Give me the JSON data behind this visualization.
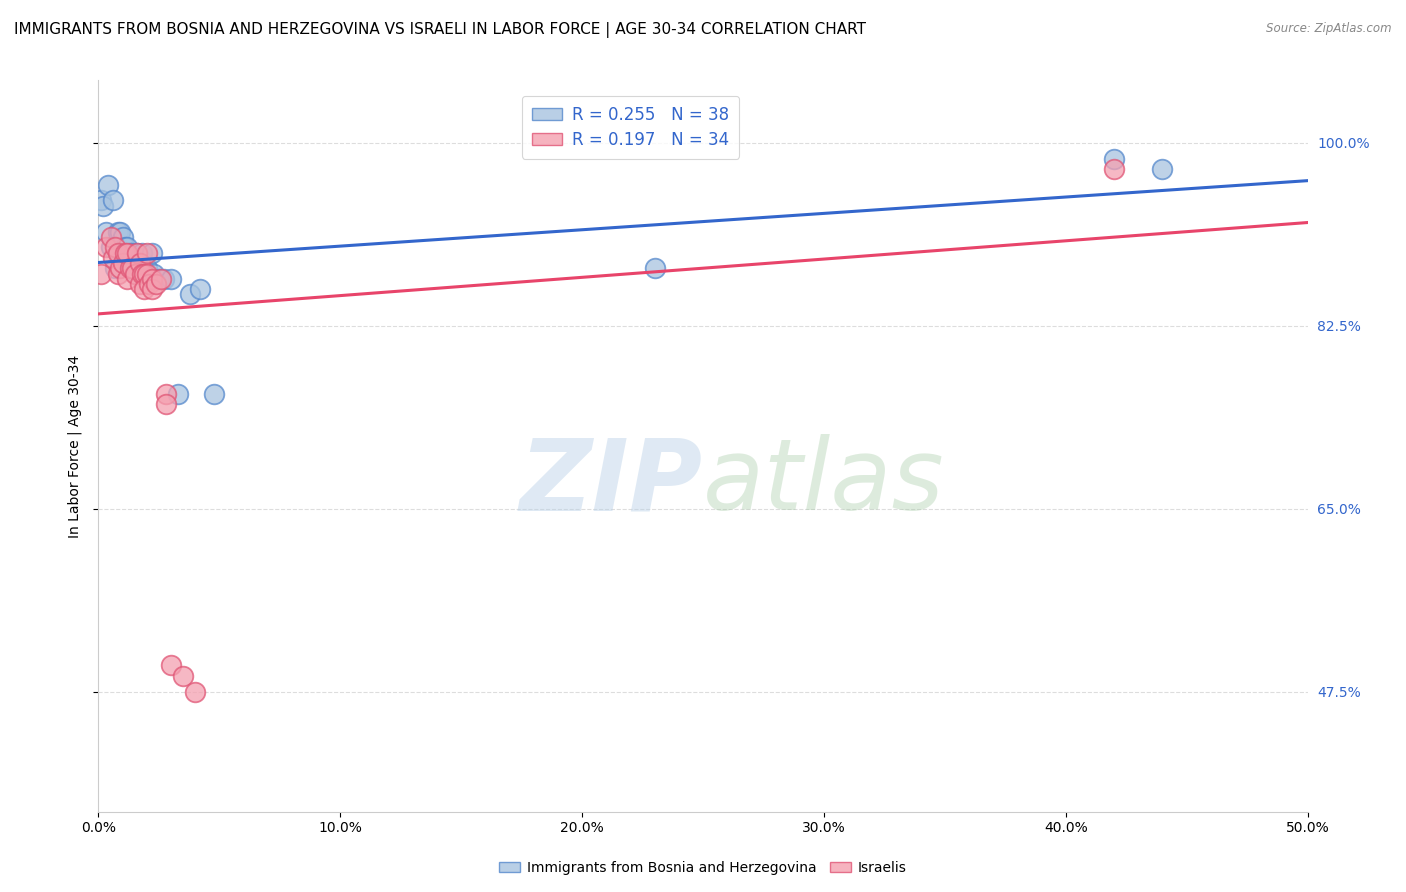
{
  "title": "IMMIGRANTS FROM BOSNIA AND HERZEGOVINA VS ISRAELI IN LABOR FORCE | AGE 30-34 CORRELATION CHART",
  "source": "Source: ZipAtlas.com",
  "ylabel": "In Labor Force | Age 30-34",
  "right_ytick_labels": [
    "47.5%",
    "65.0%",
    "82.5%",
    "100.0%"
  ],
  "right_ytick_values": [
    0.475,
    0.65,
    0.825,
    1.0
  ],
  "xlim": [
    0.0,
    0.5
  ],
  "ylim": [
    0.36,
    1.06
  ],
  "xtick_labels": [
    "0.0%",
    "10.0%",
    "20.0%",
    "30.0%",
    "40.0%",
    "50.0%"
  ],
  "xtick_values": [
    0.0,
    0.1,
    0.2,
    0.3,
    0.4,
    0.5
  ],
  "blue_label": "Immigrants from Bosnia and Herzegovina",
  "pink_label": "Israelis",
  "blue_R": 0.255,
  "blue_N": 38,
  "pink_R": 0.197,
  "pink_N": 34,
  "blue_color": "#A8C4E0",
  "pink_color": "#F4A0B0",
  "blue_edge_color": "#5588CC",
  "pink_edge_color": "#E05575",
  "blue_line_color": "#3366CC",
  "pink_line_color": "#E8446A",
  "watermark_zip": "ZIP",
  "watermark_atlas": "atlas",
  "blue_scatter_x": [
    0.001,
    0.002,
    0.003,
    0.004,
    0.005,
    0.006,
    0.007,
    0.008,
    0.008,
    0.009,
    0.009,
    0.01,
    0.01,
    0.011,
    0.012,
    0.012,
    0.013,
    0.013,
    0.014,
    0.015,
    0.016,
    0.016,
    0.017,
    0.018,
    0.019,
    0.02,
    0.022,
    0.023,
    0.025,
    0.027,
    0.03,
    0.033,
    0.038,
    0.042,
    0.048,
    0.23,
    0.42,
    0.44
  ],
  "blue_scatter_y": [
    0.945,
    0.94,
    0.915,
    0.96,
    0.9,
    0.945,
    0.88,
    0.915,
    0.895,
    0.915,
    0.895,
    0.91,
    0.895,
    0.9,
    0.9,
    0.885,
    0.895,
    0.88,
    0.895,
    0.88,
    0.895,
    0.875,
    0.89,
    0.895,
    0.878,
    0.88,
    0.895,
    0.875,
    0.87,
    0.87,
    0.87,
    0.76,
    0.855,
    0.86,
    0.76,
    0.88,
    0.985,
    0.975
  ],
  "pink_scatter_x": [
    0.001,
    0.003,
    0.005,
    0.006,
    0.007,
    0.008,
    0.008,
    0.009,
    0.01,
    0.011,
    0.012,
    0.012,
    0.013,
    0.014,
    0.015,
    0.016,
    0.017,
    0.017,
    0.018,
    0.019,
    0.019,
    0.02,
    0.02,
    0.021,
    0.022,
    0.022,
    0.024,
    0.026,
    0.028,
    0.028,
    0.03,
    0.035,
    0.04,
    0.42
  ],
  "pink_scatter_y": [
    0.875,
    0.9,
    0.91,
    0.89,
    0.9,
    0.875,
    0.895,
    0.88,
    0.885,
    0.895,
    0.87,
    0.895,
    0.88,
    0.88,
    0.875,
    0.895,
    0.865,
    0.885,
    0.875,
    0.875,
    0.86,
    0.895,
    0.875,
    0.865,
    0.87,
    0.86,
    0.865,
    0.87,
    0.76,
    0.75,
    0.5,
    0.49,
    0.475,
    0.975
  ],
  "grid_color": "#DDDDDD",
  "background_color": "#FFFFFF",
  "title_fontsize": 11,
  "axis_label_fontsize": 10,
  "tick_fontsize": 10
}
